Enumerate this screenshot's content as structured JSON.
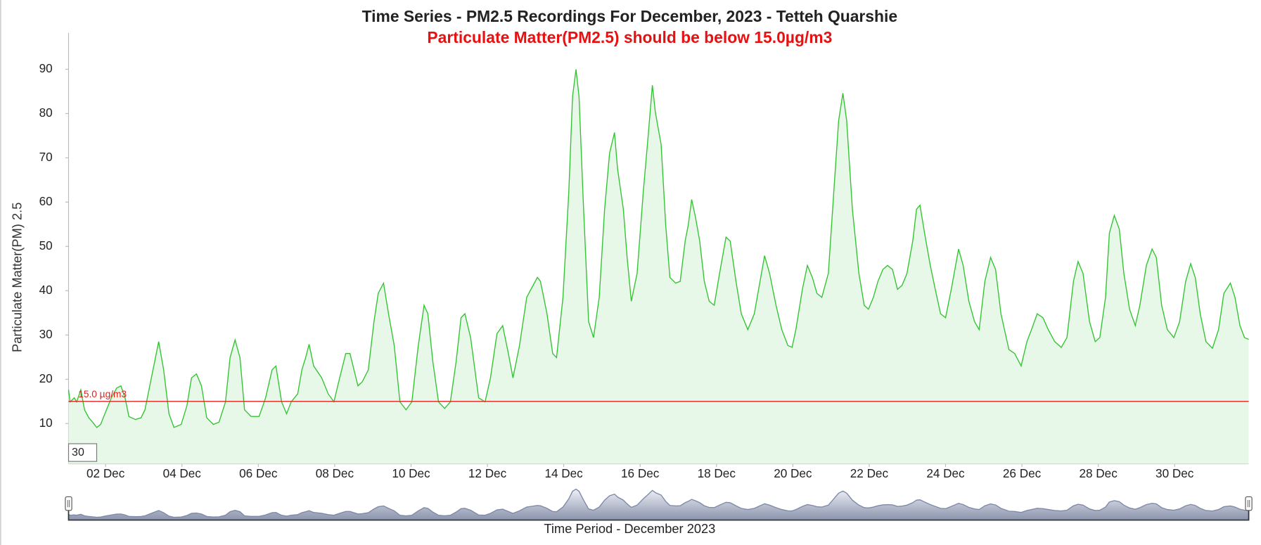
{
  "chart_data": {
    "type": "line",
    "title": "Time Series - PM2.5 Recordings For December, 2023 - Tetteh Quarshie",
    "subtitle": "Particulate Matter(PM2.5) should be below 15.0µg/m3",
    "y_label": "Particulate Matter(PM) 2.5",
    "x_label": "Time Period - December 2023",
    "threshold": 15,
    "threshold_label": "15.0 µg/m3",
    "threshold_color": "#e02020",
    "roll_period": 30,
    "color": "#33c433",
    "x": [
      1.03,
      1.07,
      1.18,
      1.24,
      1.35,
      1.45,
      1.56,
      1.66,
      1.77,
      1.87,
      1.98,
      2.15,
      2.29,
      2.4,
      2.51,
      2.61,
      2.78,
      2.93,
      3.03,
      3.24,
      3.39,
      3.52,
      3.66,
      3.79,
      3.98,
      4.13,
      4.25,
      4.38,
      4.51,
      4.65,
      4.82,
      4.97,
      5.14,
      5.26,
      5.39,
      5.52,
      5.64,
      5.81,
      6.02,
      6.19,
      6.36,
      6.46,
      6.61,
      6.74,
      6.86,
      7.03,
      7.14,
      7.24,
      7.33,
      7.45,
      7.66,
      7.83,
      7.98,
      8.13,
      8.29,
      8.4,
      8.61,
      8.72,
      8.88,
      9.03,
      9.14,
      9.28,
      9.41,
      9.56,
      9.71,
      9.87,
      10.02,
      10.19,
      10.34,
      10.44,
      10.57,
      10.72,
      10.88,
      11.03,
      11.18,
      11.31,
      11.41,
      11.56,
      11.77,
      11.94,
      12.08,
      12.25,
      12.4,
      12.55,
      12.67,
      12.84,
      13.03,
      13.14,
      13.31,
      13.39,
      13.56,
      13.71,
      13.81,
      13.98,
      14.13,
      14.23,
      14.32,
      14.4,
      14.51,
      14.65,
      14.78,
      14.93,
      15.07,
      15.2,
      15.33,
      15.41,
      15.56,
      15.66,
      15.77,
      15.92,
      16.08,
      16.21,
      16.32,
      16.4,
      16.55,
      16.67,
      16.78,
      16.93,
      17.05,
      17.18,
      17.26,
      17.35,
      17.45,
      17.56,
      17.68,
      17.81,
      17.94,
      18.08,
      18.25,
      18.36,
      18.51,
      18.65,
      18.82,
      18.99,
      19.14,
      19.26,
      19.39,
      19.56,
      19.71,
      19.87,
      19.98,
      20.08,
      20.25,
      20.38,
      20.51,
      20.63,
      20.76,
      20.93,
      21.07,
      21.2,
      21.31,
      21.41,
      21.56,
      21.73,
      21.87,
      21.98,
      22.11,
      22.23,
      22.36,
      22.48,
      22.61,
      22.74,
      22.86,
      22.99,
      23.14,
      23.24,
      23.33,
      23.45,
      23.6,
      23.73,
      23.87,
      24.0,
      24.15,
      24.34,
      24.46,
      24.61,
      24.76,
      24.88,
      25.03,
      25.18,
      25.31,
      25.45,
      25.66,
      25.81,
      25.98,
      26.13,
      26.25,
      26.4,
      26.55,
      26.69,
      26.86,
      27.03,
      27.18,
      27.35,
      27.47,
      27.6,
      27.77,
      27.92,
      28.04,
      28.19,
      28.29,
      28.42,
      28.55,
      28.67,
      28.82,
      28.97,
      29.09,
      29.26,
      29.41,
      29.52,
      29.66,
      29.81,
      29.98,
      30.13,
      30.29,
      30.42,
      30.54,
      30.67,
      30.82,
      30.99,
      31.15,
      31.29,
      31.46,
      31.58,
      31.71,
      31.83,
      31.94
    ],
    "values": [
      17.6,
      14.9,
      15.8,
      14.9,
      17.6,
      13.1,
      11.3,
      10.3,
      9.1,
      9.8,
      12.2,
      15.8,
      18.0,
      18.5,
      15.8,
      11.6,
      10.9,
      11.3,
      13.1,
      22.1,
      28.5,
      22.1,
      12.2,
      9.1,
      9.8,
      14.0,
      20.3,
      21.2,
      18.5,
      11.3,
      9.8,
      10.3,
      14.9,
      24.9,
      28.9,
      24.9,
      13.1,
      11.6,
      11.6,
      15.8,
      22.1,
      23.0,
      14.9,
      12.2,
      14.9,
      16.7,
      22.1,
      24.9,
      27.9,
      23.0,
      20.3,
      16.7,
      14.9,
      20.3,
      25.8,
      25.8,
      18.5,
      19.4,
      22.1,
      33.0,
      39.4,
      41.7,
      34.8,
      27.6,
      14.9,
      13.1,
      14.9,
      27.6,
      36.7,
      34.8,
      24.0,
      14.9,
      13.4,
      14.9,
      24.0,
      33.9,
      34.8,
      29.4,
      15.8,
      14.9,
      20.3,
      30.3,
      32.1,
      25.8,
      20.3,
      27.6,
      38.5,
      40.3,
      43.0,
      42.1,
      34.8,
      25.8,
      24.9,
      38.5,
      62.1,
      83.8,
      90.0,
      83.8,
      60.3,
      33.0,
      29.4,
      38.5,
      58.4,
      71.1,
      75.7,
      67.5,
      58.4,
      47.5,
      37.6,
      43.9,
      62.1,
      74.8,
      86.4,
      80.2,
      73.0,
      54.8,
      43.0,
      41.7,
      42.1,
      51.2,
      54.8,
      60.6,
      56.6,
      51.2,
      42.1,
      37.6,
      36.7,
      43.9,
      52.1,
      51.2,
      42.1,
      34.8,
      31.2,
      34.8,
      42.1,
      47.9,
      43.9,
      36.7,
      31.2,
      27.6,
      27.2,
      31.2,
      40.3,
      45.7,
      43.0,
      39.4,
      38.5,
      43.9,
      62.1,
      78.4,
      84.6,
      78.4,
      58.4,
      43.9,
      36.7,
      35.8,
      38.5,
      42.1,
      44.8,
      45.7,
      44.8,
      40.3,
      41.2,
      43.9,
      51.2,
      58.4,
      59.3,
      53.0,
      45.7,
      40.3,
      34.8,
      33.9,
      40.3,
      49.4,
      45.7,
      37.6,
      33.0,
      31.2,
      42.1,
      47.5,
      44.8,
      34.8,
      26.7,
      25.8,
      23.0,
      28.5,
      31.2,
      34.8,
      33.9,
      31.2,
      28.5,
      27.2,
      29.4,
      42.1,
      46.6,
      43.9,
      33.0,
      28.5,
      29.4,
      38.5,
      53.0,
      57.0,
      53.9,
      43.9,
      35.8,
      32.1,
      36.7,
      45.7,
      49.4,
      47.5,
      36.7,
      31.2,
      29.4,
      33.0,
      42.1,
      46.1,
      43.0,
      34.8,
      28.5,
      27.0,
      31.2,
      39.4,
      41.7,
      38.5,
      32.1,
      29.4,
      29.0
    ],
    "xlim": [
      1.03,
      31.94
    ],
    "ylim": [
      0.9,
      98.2
    ],
    "xticks": [
      {
        "value": 2,
        "label": "02 Dec"
      },
      {
        "value": 4,
        "label": "04 Dec"
      },
      {
        "value": 6,
        "label": "06 Dec"
      },
      {
        "value": 8,
        "label": "08 Dec"
      },
      {
        "value": 10,
        "label": "10 Dec"
      },
      {
        "value": 12,
        "label": "12 Dec"
      },
      {
        "value": 14,
        "label": "14 Dec"
      },
      {
        "value": 16,
        "label": "16 Dec"
      },
      {
        "value": 18,
        "label": "18 Dec"
      },
      {
        "value": 20,
        "label": "20 Dec"
      },
      {
        "value": 22,
        "label": "22 Dec"
      },
      {
        "value": 24,
        "label": "24 Dec"
      },
      {
        "value": 26,
        "label": "26 Dec"
      },
      {
        "value": 28,
        "label": "28 Dec"
      },
      {
        "value": 30,
        "label": "30 Dec"
      }
    ],
    "yticks": [
      10,
      20,
      30,
      40,
      50,
      60,
      70,
      80,
      90
    ],
    "grid": false,
    "range_selector": true
  }
}
